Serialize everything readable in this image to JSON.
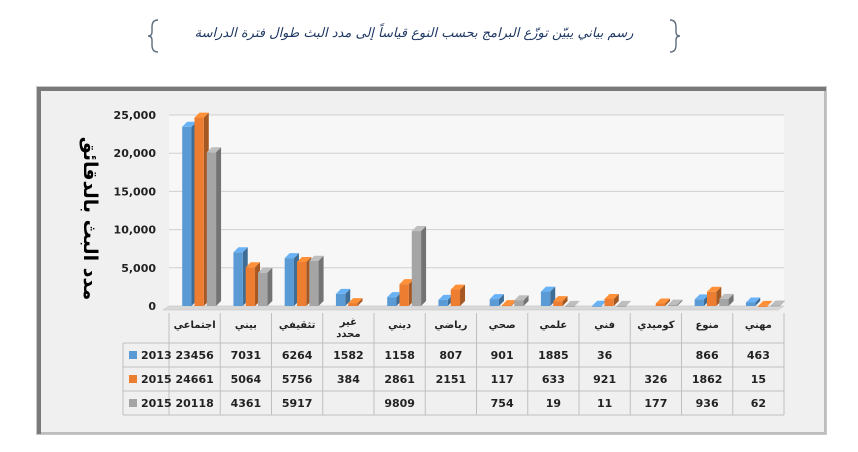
{
  "caption": "رسم بياني يبيّن توزّع البرامج بحسب النوع قياساً إلى مدد البث طوال فترة الدراسة",
  "chart_data": {
    "type": "bar",
    "ylabel": "مدد البث بالدقائق",
    "ylim": [
      0,
      25000
    ],
    "yticks": [
      "0",
      "5,000",
      "10,000",
      "15,000",
      "20,000",
      "25,000"
    ],
    "ytick_values": [
      0,
      5000,
      10000,
      15000,
      20000,
      25000
    ],
    "grid": true,
    "legend": "table-left",
    "categories": [
      "اجتماعي",
      "بيني",
      "تثقيفي",
      "غير محدد",
      "ديني",
      "رياضي",
      "صحي",
      "علمي",
      "فني",
      "كوميدي",
      "منوع",
      "مهني"
    ],
    "series": [
      {
        "name": "2013",
        "color": "#5b9bd5",
        "values": [
          23456,
          7031,
          6264,
          1582,
          1158,
          807,
          901,
          1885,
          36,
          null,
          866,
          463
        ],
        "labels": [
          "23456",
          "7031",
          "6264",
          "1582",
          "1158",
          "807",
          "901",
          "1885",
          "36",
          "",
          "866",
          "463"
        ]
      },
      {
        "name": "2015",
        "color": "#ed7d31",
        "values": [
          24661,
          5064,
          5756,
          384,
          2861,
          2151,
          117,
          633,
          921,
          326,
          1862,
          15
        ],
        "labels": [
          "24661",
          "5064",
          "5756",
          "384",
          "2861",
          "2151",
          "117",
          "633",
          "921",
          "326",
          "1862",
          "15"
        ]
      },
      {
        "name": "2015",
        "color": "#a5a5a5",
        "values": [
          20118,
          4361,
          5917,
          null,
          9809,
          null,
          754,
          19,
          11,
          177,
          936,
          62
        ],
        "labels": [
          "20118",
          "4361",
          "5917",
          "",
          "9809",
          "",
          "754",
          "19",
          "11",
          "177",
          "936",
          "62"
        ]
      }
    ]
  }
}
